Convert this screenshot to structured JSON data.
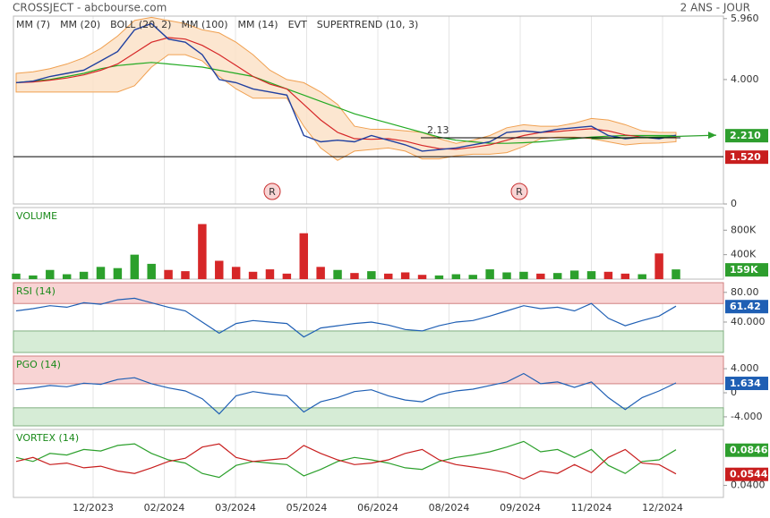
{
  "header": {
    "title": "CROSSJECT - abcbourse.com",
    "period": "2 ANS - JOUR"
  },
  "x_labels": [
    "12/2023",
    "02/2024",
    "03/2024",
    "05/2024",
    "06/2024",
    "08/2024",
    "09/2024",
    "11/2024",
    "12/2024"
  ],
  "chart_data": [
    {
      "type": "price",
      "legend": [
        {
          "name": "MM (7)",
          "color": "#1f1fb4"
        },
        {
          "name": "MM (20)",
          "color": "#d62728"
        },
        {
          "name": "BOLL (20, 2)",
          "color": "#f0a050"
        },
        {
          "name": "MM (100)",
          "color": "#22aa22"
        },
        {
          "name": "MM (14)",
          "color": "#111111"
        },
        {
          "name": "EVT",
          "color": "#111111"
        },
        {
          "name": "SUPERTREND (10, 3)",
          "color": "#8b1a1a"
        }
      ],
      "values": [
        3.9,
        3.95,
        4.1,
        4.2,
        4.3,
        4.6,
        4.9,
        5.6,
        5.8,
        5.3,
        5.2,
        4.8,
        4.0,
        3.9,
        3.7,
        3.6,
        3.5,
        2.2,
        2.0,
        2.05,
        2.0,
        2.2,
        2.05,
        1.9,
        1.7,
        1.75,
        1.8,
        1.9,
        2.0,
        2.3,
        2.35,
        2.3,
        2.4,
        2.45,
        2.5,
        2.2,
        2.1,
        2.15,
        2.1,
        2.21
      ],
      "color": "#2040a0",
      "mm20": [
        3.9,
        3.92,
        3.98,
        4.05,
        4.15,
        4.3,
        4.5,
        4.85,
        5.2,
        5.35,
        5.3,
        5.1,
        4.8,
        4.45,
        4.1,
        3.85,
        3.7,
        3.2,
        2.7,
        2.3,
        2.1,
        2.08,
        2.1,
        2.02,
        1.88,
        1.78,
        1.76,
        1.82,
        1.9,
        2.05,
        2.2,
        2.3,
        2.33,
        2.38,
        2.42,
        2.35,
        2.22,
        2.15,
        2.13,
        2.15
      ],
      "mm100": [
        3.9,
        3.95,
        4.0,
        4.1,
        4.2,
        4.35,
        4.45,
        4.5,
        4.55,
        4.5,
        4.45,
        4.4,
        4.3,
        4.2,
        4.1,
        3.9,
        3.7,
        3.5,
        3.3,
        3.1,
        2.9,
        2.75,
        2.6,
        2.45,
        2.3,
        2.15,
        2.05,
        2.0,
        1.95,
        1.95,
        1.97,
        2.0,
        2.05,
        2.1,
        2.15,
        2.18,
        2.2,
        2.2,
        2.2,
        2.2
      ],
      "boll_upper": [
        4.2,
        4.25,
        4.35,
        4.5,
        4.7,
        5.0,
        5.4,
        5.9,
        6.0,
        5.9,
        5.8,
        5.6,
        5.5,
        5.2,
        4.8,
        4.3,
        4.0,
        3.9,
        3.6,
        3.2,
        2.5,
        2.4,
        2.4,
        2.35,
        2.3,
        2.1,
        1.95,
        2.05,
        2.2,
        2.45,
        2.55,
        2.5,
        2.5,
        2.6,
        2.75,
        2.7,
        2.55,
        2.35,
        2.3,
        2.3
      ],
      "boll_lower": [
        3.6,
        3.6,
        3.6,
        3.6,
        3.6,
        3.6,
        3.6,
        3.8,
        4.4,
        4.8,
        4.8,
        4.6,
        4.1,
        3.7,
        3.4,
        3.4,
        3.4,
        2.5,
        1.8,
        1.4,
        1.7,
        1.75,
        1.8,
        1.7,
        1.45,
        1.45,
        1.55,
        1.6,
        1.6,
        1.65,
        1.85,
        2.1,
        2.15,
        2.15,
        2.1,
        2.0,
        1.9,
        1.95,
        1.96,
        2.0
      ],
      "ylim": [
        0,
        6.04
      ],
      "yticks": [
        {
          "value": 5.96,
          "label": "5.960"
        },
        {
          "value": 4,
          "label": "4.000"
        },
        0
      ],
      "badges": [
        {
          "value": 2.21,
          "label": "2.210",
          "color": "#2e9e2e"
        },
        {
          "value": 1.52,
          "label": "1.520",
          "color": "#c81e1e"
        }
      ],
      "annotation": {
        "value": 2.13,
        "label": "2.13"
      },
      "markers": [
        "R",
        "R"
      ]
    },
    {
      "type": "bar",
      "title": "VOLUME",
      "values": [
        90000,
        60000,
        150000,
        80000,
        120000,
        200000,
        180000,
        400000,
        250000,
        150000,
        130000,
        900000,
        300000,
        200000,
        120000,
        160000,
        90000,
        750000,
        200000,
        150000,
        100000,
        130000,
        90000,
        110000,
        70000,
        60000,
        80000,
        70000,
        160000,
        110000,
        120000,
        90000,
        100000,
        140000,
        130000,
        120000,
        90000,
        80000,
        420000,
        159000
      ],
      "up_color": "#2ca02c",
      "down_color": "#d62728",
      "ylim": [
        0,
        1170000
      ],
      "yticks": [
        {
          "value": 800000,
          "label": "800K"
        },
        {
          "value": 400000,
          "label": "400K"
        }
      ],
      "badges": [
        {
          "value": 159000,
          "label": "159K",
          "color": "#2e9e2e"
        }
      ]
    },
    {
      "type": "oscillator",
      "title": "RSI (14)",
      "values": [
        55,
        58,
        62,
        60,
        66,
        64,
        70,
        72,
        66,
        60,
        55,
        40,
        25,
        38,
        42,
        40,
        38,
        20,
        32,
        35,
        38,
        40,
        36,
        30,
        28,
        35,
        40,
        42,
        48,
        55,
        62,
        58,
        60,
        55,
        65,
        45,
        35,
        42,
        48,
        61.42
      ],
      "color": "#1f5fb4",
      "ylim": [
        -1,
        93
      ],
      "overbought": 65,
      "oversold": 28,
      "yticks": [
        {
          "value": 80,
          "label": "80.00"
        },
        {
          "value": 40,
          "label": "40.000"
        }
      ],
      "badges": [
        {
          "value": 61.42,
          "label": "61.42",
          "color": "#1f5fb4"
        }
      ]
    },
    {
      "type": "oscillator",
      "title": "PGO (14)",
      "values": [
        0.5,
        0.8,
        1.2,
        1.0,
        1.6,
        1.4,
        2.2,
        2.5,
        1.5,
        0.8,
        0.3,
        -1.0,
        -3.5,
        -0.5,
        0.2,
        -0.2,
        -0.5,
        -3.2,
        -1.5,
        -0.8,
        0.2,
        0.5,
        -0.5,
        -1.2,
        -1.5,
        -0.3,
        0.3,
        0.6,
        1.2,
        1.8,
        3.2,
        1.5,
        1.8,
        0.9,
        1.8,
        -0.8,
        -2.8,
        -0.8,
        0.3,
        1.634
      ],
      "color": "#1f5fb4",
      "ylim": [
        -5.5,
        6.1
      ],
      "overbought": 1.5,
      "oversold": -2.5,
      "yticks": [
        {
          "value": 4,
          "label": "4.000"
        },
        0,
        {
          "value": -4,
          "label": "-4.000"
        }
      ],
      "badges": [
        {
          "value": 1.634,
          "label": "1.634",
          "color": "#1f5fb4"
        }
      ]
    },
    {
      "type": "multi",
      "title": "VORTEX (14)",
      "series": [
        {
          "color": "#2ca02c",
          "values": [
            0.075,
            0.07,
            0.08,
            0.078,
            0.085,
            0.083,
            0.09,
            0.092,
            0.08,
            0.072,
            0.068,
            0.055,
            0.05,
            0.065,
            0.07,
            0.068,
            0.066,
            0.052,
            0.06,
            0.07,
            0.075,
            0.072,
            0.068,
            0.062,
            0.06,
            0.07,
            0.075,
            0.078,
            0.082,
            0.088,
            0.095,
            0.082,
            0.085,
            0.075,
            0.085,
            0.065,
            0.055,
            0.07,
            0.072,
            0.0846
          ]
        },
        {
          "color": "#c81e1e",
          "values": [
            0.07,
            0.075,
            0.066,
            0.068,
            0.062,
            0.064,
            0.058,
            0.055,
            0.062,
            0.07,
            0.074,
            0.088,
            0.092,
            0.075,
            0.07,
            0.072,
            0.074,
            0.09,
            0.08,
            0.072,
            0.066,
            0.068,
            0.072,
            0.08,
            0.085,
            0.072,
            0.066,
            0.063,
            0.06,
            0.056,
            0.048,
            0.058,
            0.055,
            0.066,
            0.056,
            0.075,
            0.085,
            0.068,
            0.066,
            0.0544
          ]
        }
      ],
      "ylim": [
        0.025,
        0.11
      ],
      "yticks": [
        {
          "value": 0.04,
          "label": "0.0400"
        }
      ],
      "badges": [
        {
          "value": 0.0846,
          "label": "0.0846",
          "color": "#2e9e2e"
        },
        {
          "value": 0.0544,
          "label": "0.0544",
          "color": "#c81e1e"
        }
      ]
    }
  ]
}
